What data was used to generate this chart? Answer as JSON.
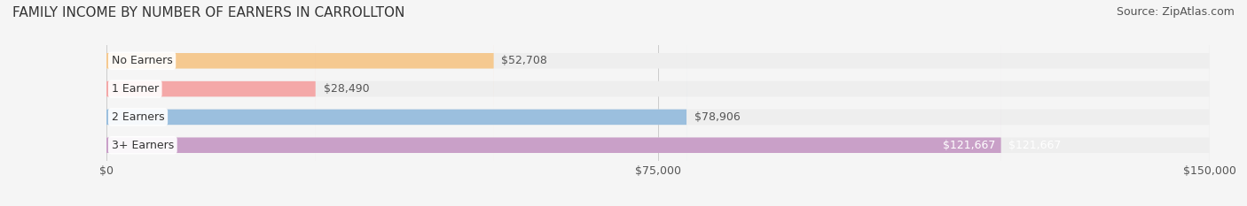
{
  "title": "FAMILY INCOME BY NUMBER OF EARNERS IN CARROLLTON",
  "source": "Source: ZipAtlas.com",
  "categories": [
    "No Earners",
    "1 Earner",
    "2 Earners",
    "3+ Earners"
  ],
  "values": [
    52708,
    28490,
    78906,
    121667
  ],
  "labels": [
    "$52,708",
    "$28,490",
    "$78,906",
    "$121,667"
  ],
  "bar_colors": [
    "#f5c990",
    "#f4a8a8",
    "#9bbfde",
    "#c9a0c8"
  ],
  "bar_bg_color": "#eeeeee",
  "label_colors": [
    "#555555",
    "#555555",
    "#555555",
    "#ffffff"
  ],
  "xlim": [
    0,
    150000
  ],
  "xticks": [
    0,
    75000,
    150000
  ],
  "xticklabels": [
    "$0",
    "$75,000",
    "$150,000"
  ],
  "title_fontsize": 11,
  "source_fontsize": 9,
  "bar_label_fontsize": 9,
  "category_fontsize": 9,
  "background_color": "#f5f5f5",
  "bar_height": 0.55,
  "figsize": [
    14.06,
    2.33
  ],
  "dpi": 100
}
